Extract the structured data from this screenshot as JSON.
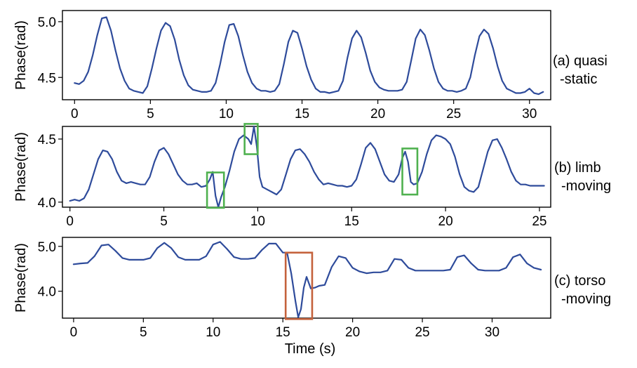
{
  "chart_data": [
    {
      "type": "line",
      "ylabel": "Phase(rad)",
      "side_label": [
        "(a) quasi",
        "-static"
      ],
      "xlim": [
        -0.8,
        31.4
      ],
      "ylim": [
        4.3,
        5.1
      ],
      "xticks": [
        "0",
        "5",
        "10",
        "15",
        "20",
        "25",
        "30"
      ],
      "yticks": [
        "5.0",
        "4.5"
      ],
      "series": [
        {
          "x": [
            0,
            0.3,
            0.6,
            0.9,
            1.2,
            1.5,
            1.8,
            2.1,
            2.4,
            2.7,
            3.0,
            3.3,
            3.6,
            3.9,
            4.2,
            4.5,
            4.8,
            5.1,
            5.4,
            5.7,
            6.0,
            6.3,
            6.6,
            6.9,
            7.2,
            7.5,
            7.8,
            8.1,
            8.4,
            8.7,
            9.0,
            9.3,
            9.6,
            9.9,
            10.2,
            10.5,
            10.8,
            11.1,
            11.4,
            11.7,
            12.0,
            12.3,
            12.6,
            12.9,
            13.2,
            13.5,
            13.8,
            14.1,
            14.4,
            14.7,
            15.0,
            15.3,
            15.6,
            15.9,
            16.2,
            16.5,
            16.8,
            17.1,
            17.4,
            17.7,
            18.0,
            18.3,
            18.6,
            18.9,
            19.2,
            19.5,
            19.8,
            20.1,
            20.4,
            20.7,
            21.0,
            21.3,
            21.6,
            21.9,
            22.2,
            22.5,
            22.8,
            23.1,
            23.4,
            23.7,
            24.0,
            24.3,
            24.6,
            24.9,
            25.2,
            25.5,
            25.8,
            26.1,
            26.4,
            26.7,
            27.0,
            27.3,
            27.6,
            27.9,
            28.2,
            28.5,
            28.8,
            29.1,
            29.4,
            29.7,
            30.0,
            30.3,
            30.6,
            30.9
          ],
          "y": [
            4.45,
            4.44,
            4.47,
            4.55,
            4.7,
            4.88,
            5.03,
            5.04,
            4.92,
            4.74,
            4.58,
            4.47,
            4.4,
            4.38,
            4.37,
            4.36,
            4.42,
            4.58,
            4.76,
            4.92,
            4.99,
            4.96,
            4.84,
            4.66,
            4.52,
            4.43,
            4.39,
            4.38,
            4.37,
            4.37,
            4.38,
            4.45,
            4.62,
            4.82,
            4.97,
            4.98,
            4.87,
            4.7,
            4.55,
            4.45,
            4.4,
            4.38,
            4.38,
            4.37,
            4.38,
            4.44,
            4.62,
            4.82,
            4.92,
            4.9,
            4.76,
            4.6,
            4.48,
            4.4,
            4.37,
            4.37,
            4.36,
            4.37,
            4.38,
            4.47,
            4.68,
            4.85,
            4.92,
            4.86,
            4.72,
            4.56,
            4.46,
            4.41,
            4.39,
            4.38,
            4.38,
            4.38,
            4.39,
            4.46,
            4.65,
            4.85,
            4.93,
            4.88,
            4.74,
            4.58,
            4.46,
            4.4,
            4.38,
            4.38,
            4.37,
            4.38,
            4.4,
            4.5,
            4.7,
            4.87,
            4.93,
            4.89,
            4.76,
            4.6,
            4.47,
            4.4,
            4.38,
            4.36,
            4.36,
            4.37,
            4.4,
            4.36,
            4.35,
            4.37
          ]
        }
      ],
      "highlights": []
    },
    {
      "type": "line",
      "ylabel": "Phase(rad)",
      "side_label": [
        "(b) limb",
        "-moving"
      ],
      "xlim": [
        -0.4,
        25.6
      ],
      "ylim": [
        3.96,
        4.6
      ],
      "xticks": [
        "0",
        "5",
        "10",
        "15",
        "20",
        "25"
      ],
      "yticks": [
        "4.5",
        "4.0"
      ],
      "series": [
        {
          "x": [
            0,
            0.25,
            0.5,
            0.75,
            1.0,
            1.25,
            1.5,
            1.75,
            2.0,
            2.25,
            2.5,
            2.75,
            3.0,
            3.25,
            3.5,
            3.75,
            4.0,
            4.25,
            4.5,
            4.75,
            5.0,
            5.25,
            5.5,
            5.75,
            6.0,
            6.25,
            6.5,
            6.75,
            7.0,
            7.25,
            7.45,
            7.6,
            7.75,
            7.9,
            8.05,
            8.25,
            8.5,
            8.75,
            9.0,
            9.25,
            9.5,
            9.65,
            9.8,
            9.95,
            10.1,
            10.25,
            10.5,
            10.75,
            11.0,
            11.25,
            11.5,
            11.75,
            12.0,
            12.25,
            12.5,
            12.75,
            13.0,
            13.25,
            13.5,
            13.75,
            14.0,
            14.25,
            14.5,
            14.75,
            15.0,
            15.25,
            15.5,
            15.75,
            16.0,
            16.25,
            16.5,
            16.75,
            17.0,
            17.25,
            17.5,
            17.7,
            17.85,
            18.0,
            18.15,
            18.3,
            18.5,
            18.75,
            19.0,
            19.25,
            19.5,
            19.75,
            20.0,
            20.25,
            20.5,
            20.75,
            21.0,
            21.25,
            21.5,
            21.75,
            22.0,
            22.25,
            22.5,
            22.75,
            23.0,
            23.25,
            23.5,
            23.75,
            24.0,
            24.25,
            24.5,
            24.75,
            25.0,
            25.25
          ],
          "y": [
            4.01,
            4.02,
            4.01,
            4.03,
            4.1,
            4.22,
            4.34,
            4.41,
            4.4,
            4.34,
            4.24,
            4.17,
            4.15,
            4.16,
            4.15,
            4.14,
            4.14,
            4.2,
            4.32,
            4.41,
            4.43,
            4.38,
            4.3,
            4.22,
            4.17,
            4.14,
            4.14,
            4.15,
            4.12,
            4.13,
            4.18,
            4.24,
            4.05,
            3.96,
            4.04,
            4.12,
            4.25,
            4.4,
            4.5,
            4.53,
            4.5,
            4.46,
            4.6,
            4.44,
            4.2,
            4.12,
            4.1,
            4.08,
            4.06,
            4.1,
            4.22,
            4.34,
            4.41,
            4.42,
            4.38,
            4.32,
            4.24,
            4.18,
            4.14,
            4.15,
            4.14,
            4.13,
            4.13,
            4.12,
            4.13,
            4.18,
            4.3,
            4.43,
            4.47,
            4.42,
            4.32,
            4.22,
            4.17,
            4.16,
            4.22,
            4.35,
            4.4,
            4.32,
            4.16,
            4.14,
            4.15,
            4.24,
            4.38,
            4.49,
            4.53,
            4.52,
            4.5,
            4.46,
            4.36,
            4.22,
            4.12,
            4.09,
            4.08,
            4.12,
            4.26,
            4.4,
            4.49,
            4.5,
            4.43,
            4.34,
            4.24,
            4.17,
            4.14,
            4.14,
            4.13,
            4.13,
            4.13,
            4.13
          ]
        }
      ],
      "highlights": [
        {
          "x": [
            7.3,
            8.2
          ],
          "y": [
            3.955,
            4.235
          ],
          "color": "#4fb14f"
        },
        {
          "x": [
            9.3,
            10.0
          ],
          "y": [
            4.38,
            4.62
          ],
          "color": "#4fb14f"
        },
        {
          "x": [
            17.7,
            18.5
          ],
          "y": [
            4.06,
            4.425
          ],
          "color": "#4fb14f"
        }
      ]
    },
    {
      "type": "line",
      "ylabel": "Phase(rad)",
      "side_label": [
        "(c) torso",
        "-moving"
      ],
      "xlabel": "Time (s)",
      "xlim": [
        -0.8,
        34.2
      ],
      "ylim": [
        3.4,
        5.2
      ],
      "xticks": [
        "0",
        "5",
        "10",
        "15",
        "20",
        "25",
        "30"
      ],
      "yticks": [
        "5.0",
        "4.0"
      ],
      "series": [
        {
          "x": [
            0,
            0.5,
            1.0,
            1.5,
            2.0,
            2.5,
            3.0,
            3.5,
            4.0,
            4.5,
            5.0,
            5.5,
            6.0,
            6.5,
            7.0,
            7.5,
            8.0,
            8.5,
            9.0,
            9.5,
            10.0,
            10.5,
            11.0,
            11.5,
            12.0,
            12.5,
            13.0,
            13.5,
            14.0,
            14.5,
            15.0,
            15.3,
            15.6,
            15.9,
            16.1,
            16.3,
            16.5,
            16.7,
            17.0,
            17.3,
            17.6,
            18.0,
            18.5,
            19.0,
            19.5,
            20.0,
            20.5,
            21.0,
            21.5,
            22.0,
            22.5,
            23.0,
            23.5,
            24.0,
            24.5,
            25.0,
            25.5,
            26.0,
            26.5,
            27.0,
            27.5,
            28.0,
            28.5,
            29.0,
            29.5,
            30.0,
            30.5,
            31.0,
            31.5,
            32.0,
            32.5,
            33.0,
            33.5
          ],
          "y": [
            4.6,
            4.62,
            4.63,
            4.78,
            5.02,
            5.04,
            4.9,
            4.74,
            4.7,
            4.7,
            4.7,
            4.74,
            4.96,
            5.08,
            4.96,
            4.76,
            4.7,
            4.7,
            4.7,
            4.78,
            5.04,
            5.1,
            4.94,
            4.76,
            4.72,
            4.72,
            4.74,
            4.92,
            5.06,
            5.06,
            4.86,
            4.86,
            4.4,
            3.78,
            3.42,
            3.6,
            4.08,
            4.32,
            4.06,
            4.08,
            4.12,
            4.14,
            4.54,
            4.78,
            4.74,
            4.52,
            4.44,
            4.4,
            4.42,
            4.42,
            4.46,
            4.72,
            4.7,
            4.52,
            4.46,
            4.46,
            4.46,
            4.46,
            4.46,
            4.48,
            4.76,
            4.8,
            4.62,
            4.48,
            4.46,
            4.46,
            4.46,
            4.52,
            4.76,
            4.82,
            4.62,
            4.52,
            4.48
          ]
        }
      ],
      "highlights": [
        {
          "x": [
            15.2,
            17.1
          ],
          "y": [
            3.38,
            4.86
          ],
          "color": "#c4623c"
        }
      ]
    }
  ],
  "colors": {
    "line": "#2e4b9b",
    "axes": "#000000"
  }
}
